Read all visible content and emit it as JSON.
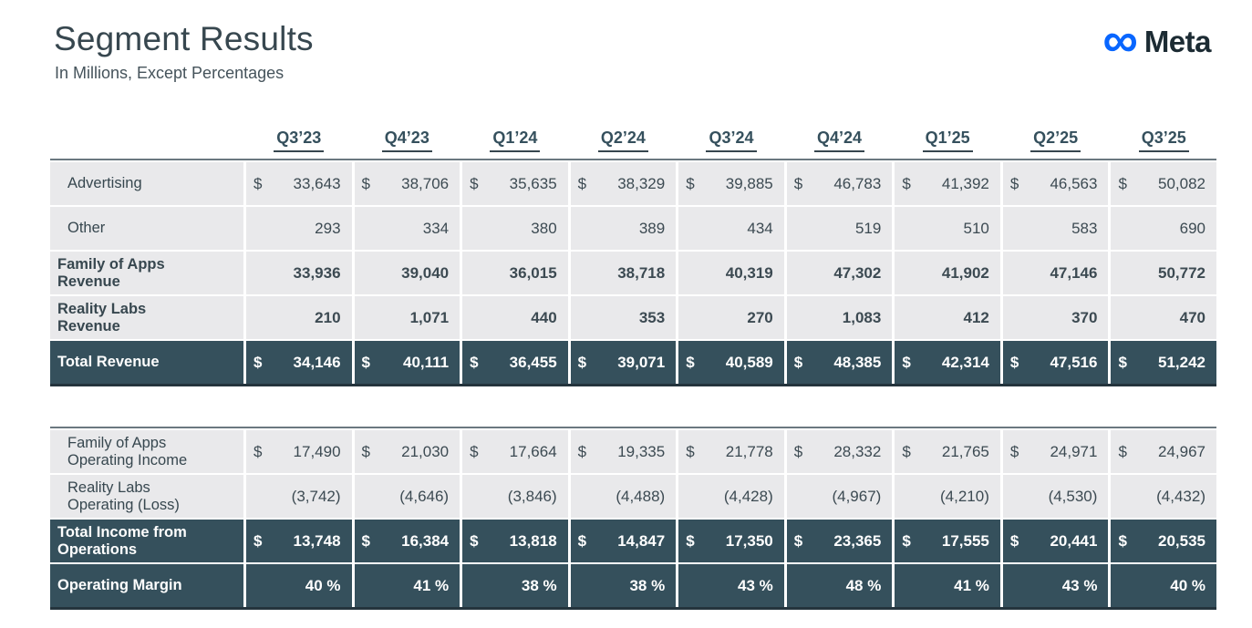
{
  "header": {
    "title": "Segment Results",
    "subtitle": "In Millions, Except Percentages",
    "logo": {
      "brand": "Meta",
      "infinity_glyph": "∞",
      "accent_color": "#0866ff",
      "text_color": "#1c2b33"
    }
  },
  "columns": [
    "Q3’23",
    "Q4’23",
    "Q1’24",
    "Q2’24",
    "Q3’24",
    "Q4’24",
    "Q1’25",
    "Q2’25",
    "Q3’25"
  ],
  "colors": {
    "dark_row_bg": "#35505c",
    "light_row_bg": "#e9e9eb",
    "text": "#37474f"
  },
  "tables": [
    {
      "name": "revenue",
      "rows": [
        {
          "label": "Advertising",
          "style": "light",
          "bold": false,
          "dollar": true,
          "values": [
            "33,643",
            "38,706",
            "35,635",
            "38,329",
            "39,885",
            "46,783",
            "41,392",
            "46,563",
            "50,082"
          ]
        },
        {
          "label": "Other",
          "style": "light",
          "bold": false,
          "dollar": false,
          "values": [
            "293",
            "334",
            "380",
            "389",
            "434",
            "519",
            "510",
            "583",
            "690"
          ]
        },
        {
          "label": "Family of Apps Revenue",
          "style": "light",
          "bold": true,
          "dollar": false,
          "values": [
            "33,936",
            "39,040",
            "36,015",
            "38,718",
            "40,319",
            "47,302",
            "41,902",
            "47,146",
            "50,772"
          ]
        },
        {
          "label": "Reality Labs Revenue",
          "style": "light",
          "bold": true,
          "dollar": false,
          "values": [
            "210",
            "1,071",
            "440",
            "353",
            "270",
            "1,083",
            "412",
            "370",
            "470"
          ]
        },
        {
          "label": "Total Revenue",
          "style": "dark",
          "bold": true,
          "dollar": true,
          "values": [
            "34,146",
            "40,111",
            "36,455",
            "39,071",
            "40,589",
            "48,385",
            "42,314",
            "47,516",
            "51,242"
          ]
        }
      ]
    },
    {
      "name": "operating",
      "rows": [
        {
          "label": "Family of Apps Operating Income",
          "style": "light",
          "bold": false,
          "dollar": true,
          "values": [
            "17,490",
            "21,030",
            "17,664",
            "19,335",
            "21,778",
            "28,332",
            "21,765",
            "24,971",
            "24,967"
          ]
        },
        {
          "label": "Reality Labs Operating (Loss)",
          "style": "light",
          "bold": false,
          "dollar": false,
          "values": [
            "(3,742)",
            "(4,646)",
            "(3,846)",
            "(4,488)",
            "(4,428)",
            "(4,967)",
            "(4,210)",
            "(4,530)",
            "(4,432)"
          ]
        },
        {
          "label": "Total Income from Operations",
          "style": "dark",
          "bold": true,
          "dollar": true,
          "values": [
            "13,748",
            "16,384",
            "13,818",
            "14,847",
            "17,350",
            "23,365",
            "17,555",
            "20,441",
            "20,535"
          ]
        },
        {
          "label": "Operating Margin",
          "style": "dark",
          "bold": true,
          "dollar": false,
          "values": [
            "40 %",
            "41 %",
            "38 %",
            "38 %",
            "43 %",
            "48 %",
            "41 %",
            "43 %",
            "40 %"
          ]
        }
      ]
    }
  ]
}
